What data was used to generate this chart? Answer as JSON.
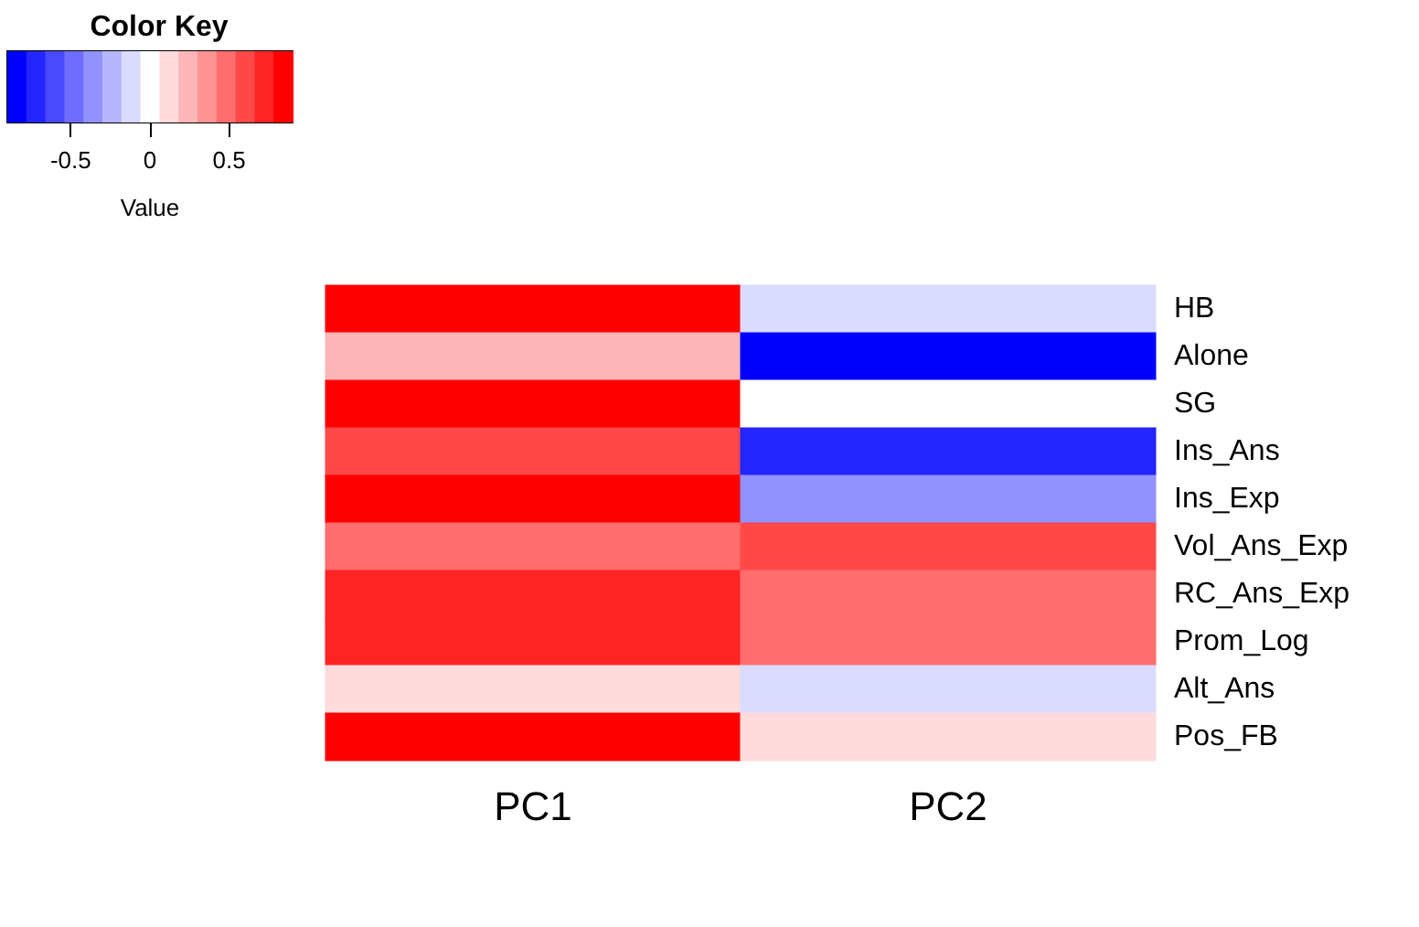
{
  "chart_data": {
    "type": "heatmap",
    "title": "Color Key",
    "clabel": "Value",
    "categories": [
      "PC1",
      "PC2"
    ],
    "y_categories": [
      "HB",
      "Alone",
      "SG",
      "Ins_Ans",
      "Ins_Exp",
      "Vol_Ans_Exp",
      "RC_Ans_Exp",
      "Prom_Log",
      "Alt_Ans",
      "Pos_FB"
    ],
    "cells": [
      [
        0.84,
        -0.12
      ],
      [
        0.24,
        -0.84
      ],
      [
        0.84,
        0
      ],
      [
        0.6,
        -0.72
      ],
      [
        0.84,
        -0.36
      ],
      [
        0.48,
        0.6
      ],
      [
        0.72,
        0.48
      ],
      [
        0.72,
        0.48
      ],
      [
        0.12,
        -0.12
      ],
      [
        0.84,
        0.12
      ]
    ],
    "clim": [
      -0.9,
      0.9
    ],
    "cticks": [
      -0.5,
      0,
      0.5
    ]
  }
}
